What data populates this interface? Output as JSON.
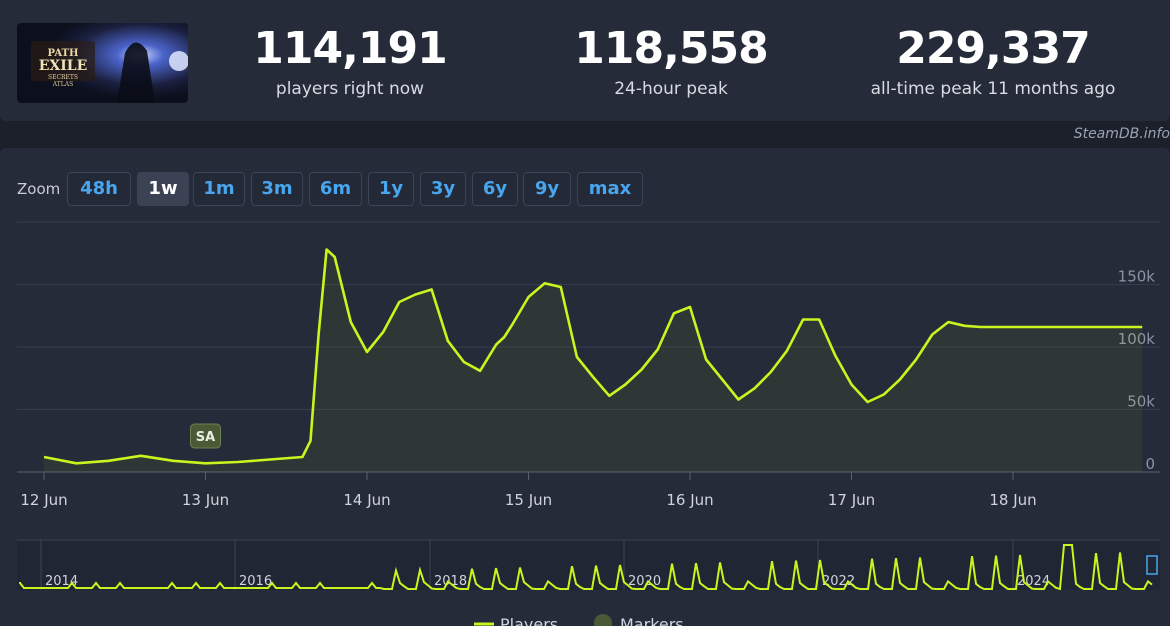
{
  "game": {
    "logo_name": "Path of Exile Secrets of the Atlas"
  },
  "stats": [
    {
      "value": "114,191",
      "label": "players right now"
    },
    {
      "value": "118,558",
      "label": "24-hour peak"
    },
    {
      "value": "229,337",
      "label": "all-time peak 11 months ago"
    }
  ],
  "credit": "SteamDB.info",
  "zoom": {
    "label": "Zoom",
    "buttons": [
      "48h",
      "1w",
      "1m",
      "3m",
      "6m",
      "1y",
      "3y",
      "6y",
      "9y",
      "max"
    ],
    "active": "1w"
  },
  "colors": {
    "accent": "#c9f51e",
    "link": "#48a6ee",
    "marker": "#4a5a37"
  },
  "marker": {
    "label": "SA"
  },
  "legend": {
    "players": "Players",
    "markers": "Markers"
  },
  "chart_data": {
    "type": "area",
    "ylabel": "",
    "yticks": [
      "0",
      "50k",
      "100k",
      "150k"
    ],
    "ylim": [
      0,
      200000
    ],
    "xticks": [
      "12 Jun",
      "13 Jun",
      "14 Jun",
      "15 Jun",
      "16 Jun",
      "17 Jun",
      "18 Jun"
    ],
    "grid": true,
    "series": [
      {
        "name": "Players",
        "x": [
          0.0,
          0.2,
          0.4,
          0.6,
          0.8,
          1.0,
          1.2,
          1.4,
          1.6,
          1.65,
          1.7,
          1.75,
          1.8,
          1.9,
          2.0,
          2.1,
          2.2,
          2.3,
          2.4,
          2.5,
          2.6,
          2.7,
          2.8,
          2.85,
          2.9,
          3.0,
          3.1,
          3.2,
          3.3,
          3.4,
          3.5,
          3.6,
          3.7,
          3.8,
          3.9,
          4.0,
          4.1,
          4.2,
          4.3,
          4.4,
          4.5,
          4.6,
          4.7,
          4.8,
          4.9,
          5.0,
          5.1,
          5.2,
          5.3,
          5.4,
          5.5,
          5.6,
          5.7,
          5.8,
          5.9,
          6.0,
          6.1,
          6.2,
          6.3,
          6.4,
          6.5,
          6.6,
          6.7,
          6.8,
          6.9
        ],
        "values": [
          12000,
          7000,
          9000,
          13000,
          9000,
          7000,
          8000,
          10000,
          12000,
          25000,
          110000,
          178000,
          172000,
          120000,
          96000,
          112000,
          136000,
          142000,
          146000,
          105000,
          88000,
          81000,
          102000,
          108000,
          118000,
          140000,
          151000,
          148000,
          92000,
          76000,
          61000,
          70000,
          82000,
          98000,
          127000,
          132000,
          90000,
          74000,
          58000,
          67000,
          80000,
          97000,
          122000,
          122000,
          93000,
          70000,
          56000,
          62000,
          74000,
          90000,
          110000,
          120000,
          117000,
          116000,
          116000,
          116000,
          116000,
          116000,
          116000,
          116000,
          116000,
          116000,
          116000,
          116000,
          116000
        ]
      }
    ],
    "navigator": {
      "xticks": [
        "2014",
        "2016",
        "2018",
        "2020",
        "2022",
        "2024"
      ]
    },
    "annotations": [
      {
        "label": "SA",
        "x": 1.0
      }
    ]
  }
}
